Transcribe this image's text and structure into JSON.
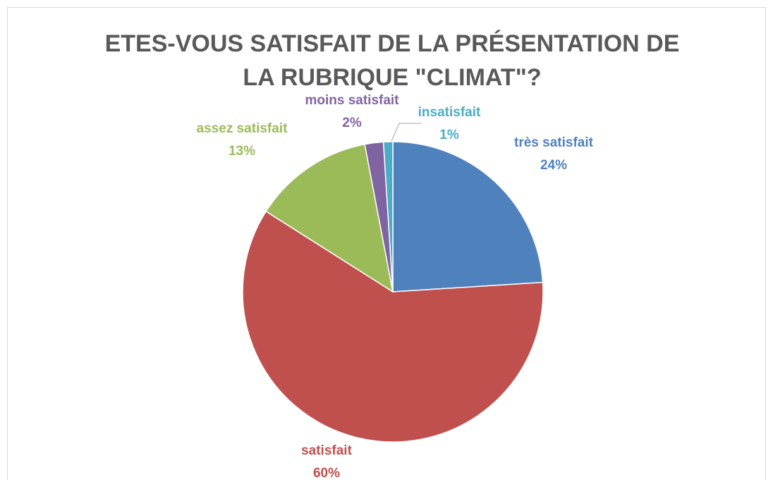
{
  "chart_data": {
    "type": "pie",
    "title": "ETES-VOUS SATISFAIT DE LA PRÉSENTATION DE LA RUBRIQUE \"CLIMAT\"?",
    "categories": [
      "très satisfait",
      "satisfait",
      "assez satisfait",
      "moins satisfait",
      "insatisfait"
    ],
    "values": [
      24,
      60,
      13,
      2,
      1
    ],
    "value_labels": [
      "24%",
      "60%",
      "13%",
      "2%",
      "1%"
    ],
    "colors": [
      "#4f81bd",
      "#c0504d",
      "#9bbb59",
      "#8064a2",
      "#4bacc6"
    ]
  }
}
